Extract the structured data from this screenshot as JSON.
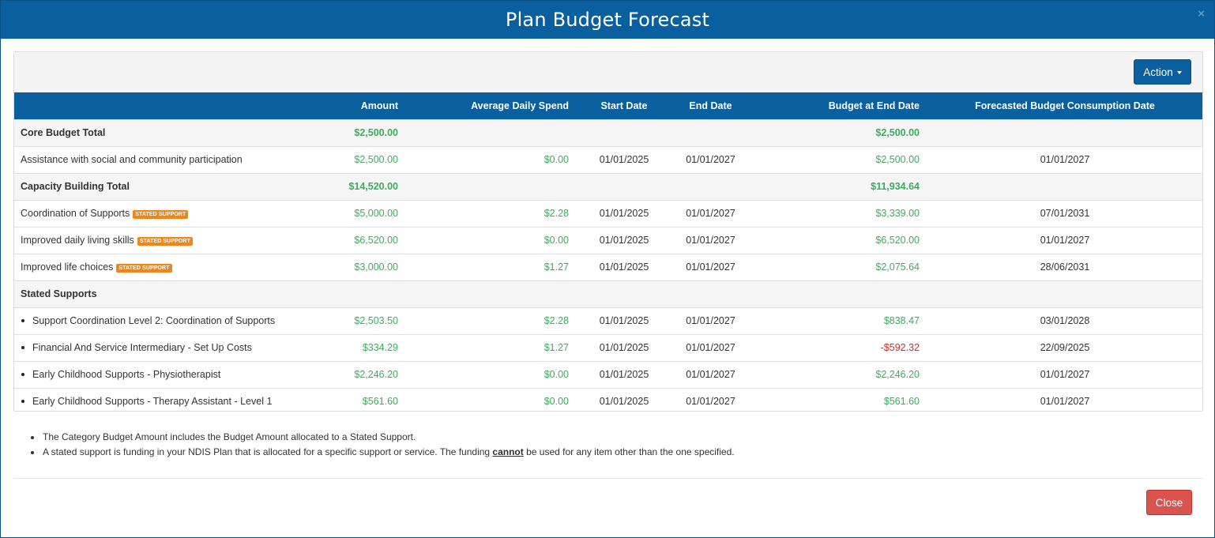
{
  "modal": {
    "title": "Plan Budget Forecast",
    "close_icon": "×"
  },
  "toolbar": {
    "action_label": "Action"
  },
  "table": {
    "headers": [
      "",
      "Amount",
      "Average Daily Spend",
      "Start Date",
      "End Date",
      "Budget at End Date",
      "Forecasted Budget Consumption Date"
    ],
    "rows": [
      {
        "type": "group",
        "label": "Core Budget Total",
        "amount": "$2,500.00",
        "avg": "",
        "start": "",
        "end": "",
        "budget_end": "$2,500.00",
        "forecast": ""
      },
      {
        "type": "item",
        "label": "Assistance with social and community participation",
        "badge": "",
        "amount": "$2,500.00",
        "avg": "$0.00",
        "start": "01/01/2025",
        "end": "01/01/2027",
        "budget_end": "$2,500.00",
        "forecast": "01/01/2027"
      },
      {
        "type": "group",
        "label": "Capacity Building Total",
        "amount": "$14,520.00",
        "avg": "",
        "start": "",
        "end": "",
        "budget_end": "$11,934.64",
        "forecast": ""
      },
      {
        "type": "item",
        "label": "Coordination of Supports",
        "badge": "STATED SUPPORT",
        "amount": "$5,000.00",
        "avg": "$2.28",
        "start": "01/01/2025",
        "end": "01/01/2027",
        "budget_end": "$3,339.00",
        "forecast": "07/01/2031"
      },
      {
        "type": "item",
        "label": "Improved daily living skills",
        "badge": "STATED SUPPORT",
        "amount": "$6,520.00",
        "avg": "$0.00",
        "start": "01/01/2025",
        "end": "01/01/2027",
        "budget_end": "$6,520.00",
        "forecast": "01/01/2027"
      },
      {
        "type": "item",
        "label": "Improved life choices",
        "badge": "STATED SUPPORT",
        "amount": "$3,000.00",
        "avg": "$1.27",
        "start": "01/01/2025",
        "end": "01/01/2027",
        "budget_end": "$2,075.64",
        "forecast": "28/06/2031"
      },
      {
        "type": "group",
        "label": "Stated Supports",
        "amount": "",
        "avg": "",
        "start": "",
        "end": "",
        "budget_end": "",
        "forecast": ""
      },
      {
        "type": "bullet",
        "label": "Support Coordination Level 2: Coordination of Supports",
        "amount": "$2,503.50",
        "avg": "$2.28",
        "start": "01/01/2025",
        "end": "01/01/2027",
        "budget_end": "$838.47",
        "forecast": "03/01/2028"
      },
      {
        "type": "bullet",
        "label": "Financial And Service Intermediary - Set Up Costs",
        "amount": "$334.29",
        "avg": "$1.27",
        "start": "01/01/2025",
        "end": "01/01/2027",
        "budget_end": "-$592.32",
        "forecast": "22/09/2025"
      },
      {
        "type": "bullet",
        "label": "Early Childhood Supports - Physiotherapist",
        "amount": "$2,246.20",
        "avg": "$0.00",
        "start": "01/01/2025",
        "end": "01/01/2027",
        "budget_end": "$2,246.20",
        "forecast": "01/01/2027"
      },
      {
        "type": "bullet",
        "label": "Early Childhood Supports - Therapy Assistant - Level 1",
        "amount": "$561.60",
        "avg": "$0.00",
        "start": "01/01/2025",
        "end": "01/01/2027",
        "budget_end": "$561.60",
        "forecast": "01/01/2027"
      }
    ]
  },
  "notes": {
    "note1": "The Category Budget Amount includes the Budget Amount allocated to a Stated Support.",
    "note2_pre": "A stated support is funding in your NDIS Plan that is allocated for a specific support or service. The funding ",
    "note2_emph": "cannot",
    "note2_post": " be used for any item other than the one specified."
  },
  "footer": {
    "close_label": "Close"
  },
  "colors": {
    "header_blue": "#0a5f9e",
    "positive": "#3cad5b",
    "negative": "#c9302c",
    "badge": "#f0861a",
    "close": "#d9534f"
  }
}
